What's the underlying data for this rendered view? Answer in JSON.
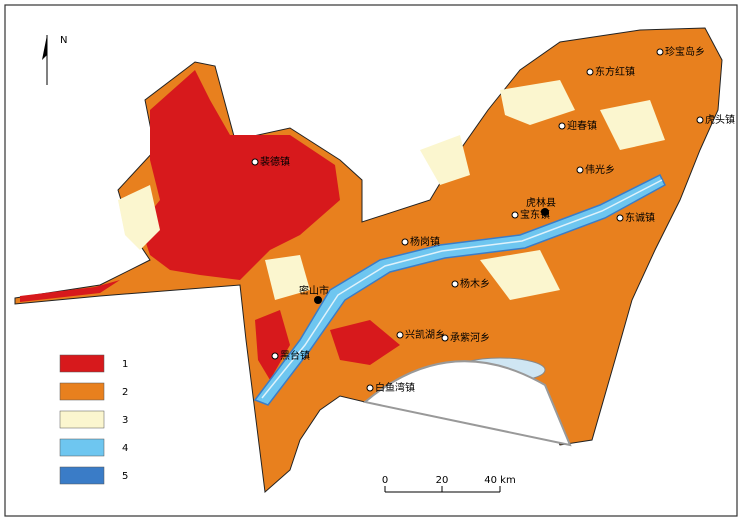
{
  "north": "N",
  "legend": {
    "items": [
      {
        "label": "1",
        "color": "#d7191c"
      },
      {
        "label": "2",
        "color": "#e8801e"
      },
      {
        "label": "3",
        "color": "#fbf6cf"
      },
      {
        "label": "4",
        "color": "#6ec6f0"
      },
      {
        "label": "5",
        "color": "#3a7cc7"
      }
    ]
  },
  "scale_bar": {
    "ticks": [
      "0",
      "20",
      "40 km"
    ]
  },
  "places": [
    {
      "name": "珍宝岛乡"
    },
    {
      "name": "东方红镇"
    },
    {
      "name": "迎春镇"
    },
    {
      "name": "虎头镇"
    },
    {
      "name": "伟光乡"
    },
    {
      "name": "宝东镇"
    },
    {
      "name": "虎林县"
    },
    {
      "name": "东诚镇"
    },
    {
      "name": "杨岗镇"
    },
    {
      "name": "密山市"
    },
    {
      "name": "裴德镇"
    },
    {
      "name": "黑台镇"
    },
    {
      "name": "兴凯湖乡"
    },
    {
      "name": "承紫河乡"
    },
    {
      "name": "白鱼湾镇"
    },
    {
      "name": "杨木乡"
    }
  ]
}
